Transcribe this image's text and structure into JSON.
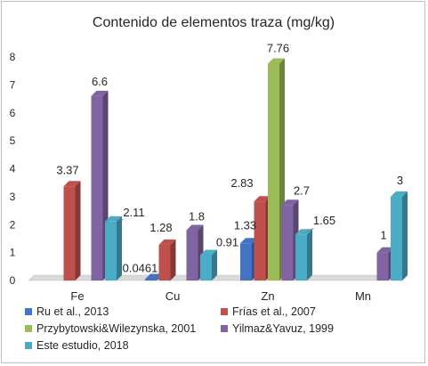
{
  "chart_data": {
    "type": "bar",
    "style": "3d-clustered-column",
    "title": "Contenido de elementos traza (mg/kg)",
    "xlabel": "",
    "ylabel": "",
    "categories": [
      "Fe",
      "Cu",
      "Zn",
      "Mn"
    ],
    "ylim": [
      0,
      8
    ],
    "yticks": [
      0,
      1,
      2,
      3,
      4,
      5,
      6,
      7,
      8
    ],
    "grid": false,
    "legend_position": "bottom",
    "series": [
      {
        "name": "Ru et al., 2013",
        "color": "#4472c4",
        "values": [
          null,
          0.0461,
          1.33,
          null
        ],
        "labels": [
          "",
          "0.0461",
          "1.33",
          ""
        ]
      },
      {
        "name": "Frías et al., 2007",
        "color": "#c0504d",
        "values": [
          3.37,
          1.28,
          2.83,
          null
        ],
        "labels": [
          "3.37",
          "1.28",
          "2.83",
          ""
        ]
      },
      {
        "name": "Przybytowski&Wilezynska, 2001",
        "color": "#9bbb59",
        "values": [
          null,
          null,
          7.76,
          null
        ],
        "labels": [
          "",
          "",
          "7.76",
          ""
        ]
      },
      {
        "name": "Yilmaz&Yavuz, 1999",
        "color": "#8064a2",
        "values": [
          6.6,
          1.8,
          2.7,
          1
        ],
        "labels": [
          "6.6",
          "1.8",
          "2.7",
          "1"
        ]
      },
      {
        "name": "Este estudio, 2018",
        "color": "#4bacc6",
        "values": [
          2.11,
          0.91,
          1.65,
          3
        ],
        "labels": [
          "2.11",
          "0.91",
          "1.65",
          "3"
        ]
      }
    ]
  }
}
